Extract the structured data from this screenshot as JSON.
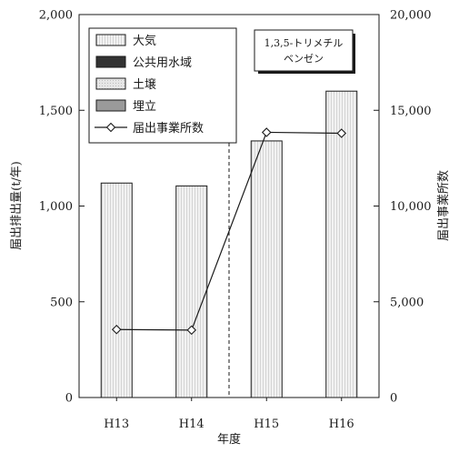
{
  "chart_data": {
    "type": "bar",
    "categories": [
      "H13",
      "H14",
      "H15",
      "H16"
    ],
    "series": [
      {
        "name": "大気",
        "kind": "bar",
        "axis": "left",
        "values": [
          1120,
          1105,
          1340,
          1600
        ]
      },
      {
        "name": "公共用水域",
        "kind": "bar",
        "axis": "left",
        "values": [
          0,
          0,
          0,
          0
        ]
      },
      {
        "name": "土壌",
        "kind": "bar",
        "axis": "left",
        "values": [
          0,
          0,
          0,
          0
        ]
      },
      {
        "name": "埋立",
        "kind": "bar",
        "axis": "left",
        "values": [
          0,
          0,
          0,
          0
        ]
      },
      {
        "name": "届出事業所数",
        "kind": "line",
        "axis": "right",
        "values": [
          3550,
          3520,
          13850,
          13800
        ]
      }
    ],
    "xlabel": "年度",
    "ylabel": "届出排出量(t/年)",
    "y2label": "届出事業所数",
    "ylim": [
      0,
      2000
    ],
    "y2lim": [
      0,
      20000
    ],
    "yticks": [
      "0",
      "500",
      "1,000",
      "1,500",
      "2,000"
    ],
    "y2ticks": [
      "0",
      "5,000",
      "10,000",
      "15,000",
      "20,000"
    ],
    "annotation": [
      "1,3,5-トリメチル",
      "ベンゼン"
    ],
    "divider_between": [
      "H14",
      "H15"
    ],
    "legend_position": "top-left",
    "grid": false,
    "colors": {
      "大気": "#f2f2f2",
      "公共用水域": "#333333",
      "土壌": "#e6e6e6",
      "埋立": "#9a9a9a",
      "line": "#1a1a1a"
    }
  }
}
